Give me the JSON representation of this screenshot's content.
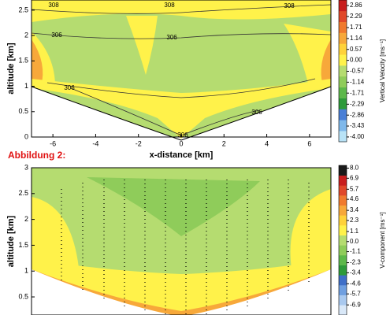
{
  "chart_data": [
    {
      "type": "contour",
      "xlabel": "x-distance [km]",
      "ylabel": "altitude [km]",
      "xlim": [
        -7,
        7
      ],
      "xticks": [
        -6,
        -4,
        -2,
        0,
        2,
        4,
        6
      ],
      "ylim": [
        0,
        2.7
      ],
      "yticks": [
        0,
        0.5,
        1,
        1.5,
        2,
        2.5
      ],
      "colorbar_label": "Vertical Velocity [ms⁻¹]",
      "clim": [
        -4.25,
        3.15
      ],
      "cticks": [
        2.86,
        2.29,
        1.71,
        1.14,
        0.57,
        {
          "value": 0,
          "label": "0.00"
        },
        -0.57,
        -1.14,
        -1.71,
        -2.29,
        -2.86,
        -3.43,
        {
          "value": -4,
          "label": "-4.00"
        }
      ],
      "colors": [
        "#b9e3f7",
        "#7fb8ea",
        "#4a7fd6",
        "#2d9a3a",
        "#5cb84a",
        "#8fcc5a",
        "#b5dc70",
        "#fff24a",
        "#ffd23a",
        "#f7a83a",
        "#f07a2e",
        "#e0482a",
        "#c81e1e"
      ],
      "contour_labels": [
        "308",
        "308",
        "308",
        "306",
        "306",
        "306",
        "306",
        "306"
      ]
    },
    {
      "type": "contour",
      "title": "Abbildung 2:",
      "ylabel": "altitude [km]",
      "xlim": [
        -7,
        7
      ],
      "ylim": [
        0.15,
        3
      ],
      "yticks": [
        0.5,
        1,
        1.5,
        2,
        2.5,
        3
      ],
      "colorbar_label": "V-component [ms⁻¹]",
      "clim": [
        -8,
        8.3
      ],
      "cticks": [
        {
          "value": 8,
          "label": "8.0"
        },
        6.9,
        5.7,
        4.6,
        3.4,
        2.3,
        1.1,
        {
          "value": 0,
          "label": "0.0"
        },
        -1.1,
        -2.3,
        -3.4,
        -4.6,
        -5.7,
        -6.9
      ],
      "colors": [
        "#d9e8f8",
        "#a9c9ef",
        "#6f9fe0",
        "#3f6fc8",
        "#2d9a3a",
        "#5cb84a",
        "#8fcc5a",
        "#b5dc70",
        "#fff24a",
        "#ffd23a",
        "#f7a83a",
        "#f07a2e",
        "#e0482a",
        "#c81e1e",
        "#1a1a1a"
      ]
    }
  ]
}
